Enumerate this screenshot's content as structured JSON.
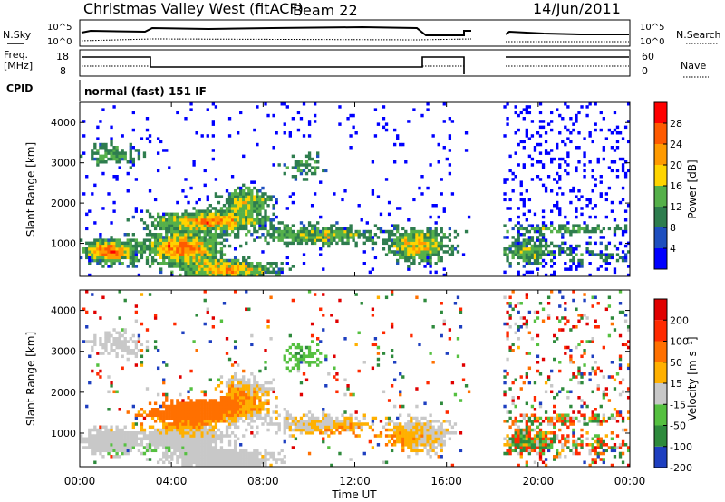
{
  "header": {
    "station": "Christmas Valley West (fitACF)",
    "beam": "Beam 22",
    "date": "14/Jun/2011"
  },
  "summary": {
    "nsky_label": "N.Sky",
    "nsky_ticks": [
      "10^5",
      "10^0"
    ],
    "nsearch_label": "N.Search",
    "nsearch_ticks": [
      "10^5",
      "10^0"
    ],
    "freq_label": "Freq.",
    "freq_unit": "[MHz]",
    "freq_ticks": [
      "18",
      "8"
    ],
    "nave_label": "Nave",
    "nave_ticks": [
      "60",
      "0"
    ],
    "cpid_label": "CPID",
    "cpid_text": "normal (fast) 151 IF"
  },
  "chart_data": [
    {
      "type": "heatmap",
      "name": "power",
      "ylabel": "Slant Range [km]",
      "y_ticks": [
        "4000",
        "3000",
        "2000",
        "1000"
      ],
      "ylim": [
        180,
        4500
      ],
      "xlim": [
        "00:00",
        "24:00"
      ],
      "colorbar_label": "Power [dB]",
      "colorbar_ticks": [
        "28",
        "24",
        "20",
        "16",
        "12",
        "8",
        "4"
      ],
      "colors": [
        "#0000ff",
        "#1e4fbf",
        "#2e7d4e",
        "#55b04a",
        "#ffd400",
        "#ff9a00",
        "#ff5a00",
        "#ff0000"
      ],
      "data_gap": [
        "17:00",
        "18:30"
      ]
    },
    {
      "type": "heatmap",
      "name": "velocity",
      "ylabel": "Slant Range [km]",
      "y_ticks": [
        "4000",
        "3000",
        "2000",
        "1000"
      ],
      "ylim": [
        180,
        4500
      ],
      "xlim": [
        "00:00",
        "24:00"
      ],
      "colorbar_label": "Velocity [m s⁻¹]",
      "colorbar_ticks": [
        "200",
        "100",
        "50",
        "15",
        "-15",
        "-50",
        "-100",
        "-200"
      ],
      "colors": [
        "#1e3fc0",
        "#2e8a3c",
        "#55c040",
        "#c8c8c8",
        "#ffb000",
        "#ff7000",
        "#ff2a00",
        "#e00000"
      ],
      "data_gap": [
        "17:00",
        "18:30"
      ]
    }
  ],
  "x_axis": {
    "label": "Time UT",
    "ticks": [
      "00:00",
      "04:00",
      "08:00",
      "12:00",
      "16:00",
      "20:00",
      "00:00"
    ]
  }
}
